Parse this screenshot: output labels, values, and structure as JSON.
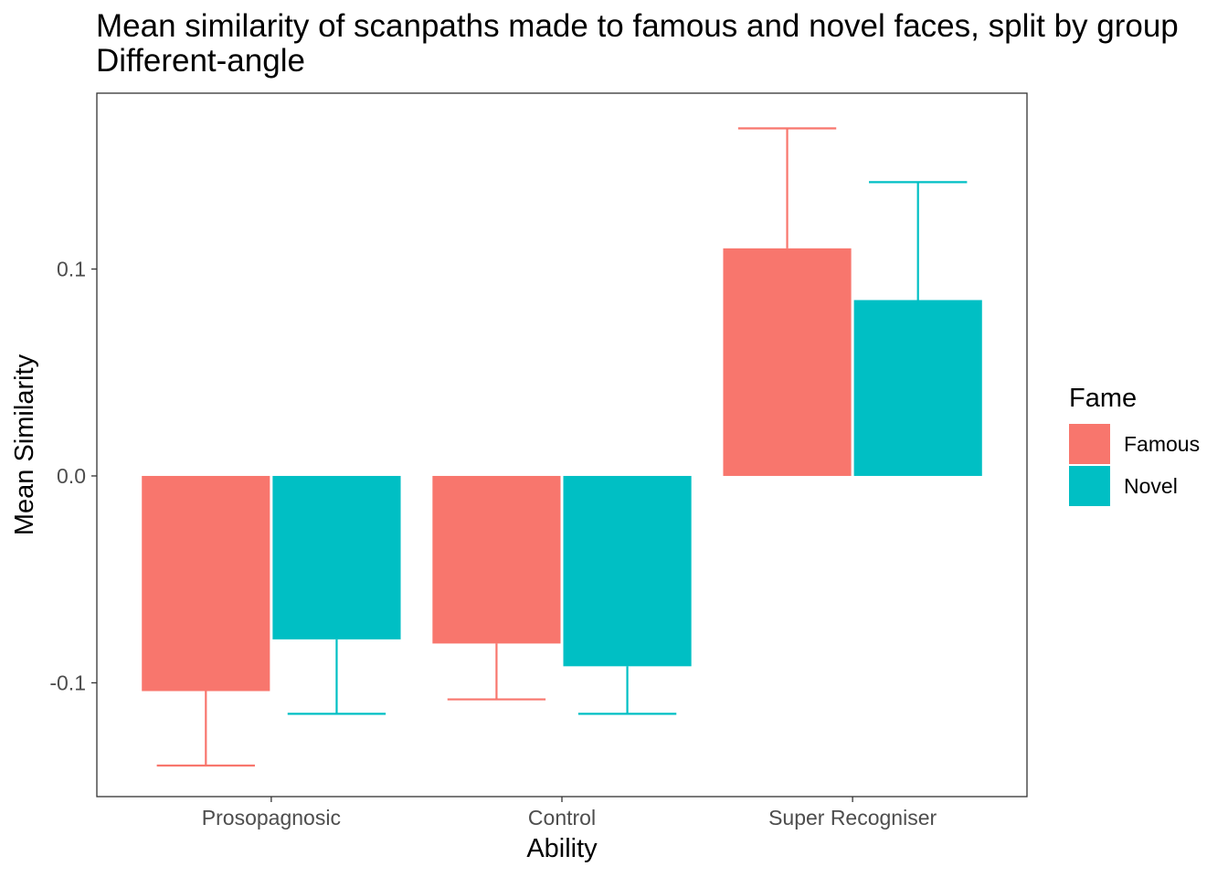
{
  "chart_data": {
    "type": "bar",
    "title": "Mean similarity of scanpaths made to famous and novel faces, split by group",
    "subtitle": "Different-angle",
    "xlabel": "Ability",
    "ylabel": "Mean Similarity",
    "categories": [
      "Prosopagnosic",
      "Control",
      "Super Recogniser"
    ],
    "series": [
      {
        "name": "Famous",
        "color": "#F8766D",
        "values": [
          -0.104,
          -0.081,
          0.11
        ],
        "error_end": [
          -0.14,
          -0.108,
          0.168
        ]
      },
      {
        "name": "Novel",
        "color": "#00BFC4",
        "values": [
          -0.079,
          -0.092,
          0.085
        ],
        "error_end": [
          -0.115,
          -0.115,
          0.142
        ]
      }
    ],
    "ylim": [
      -0.155,
      0.185
    ],
    "yticks": [
      {
        "value": -0.1,
        "label": "-0.1"
      },
      {
        "value": 0.0,
        "label": "0.0"
      },
      {
        "value": 0.1,
        "label": "0.1"
      }
    ],
    "grid": false,
    "legend": {
      "title": "Fame",
      "position": "right"
    }
  }
}
